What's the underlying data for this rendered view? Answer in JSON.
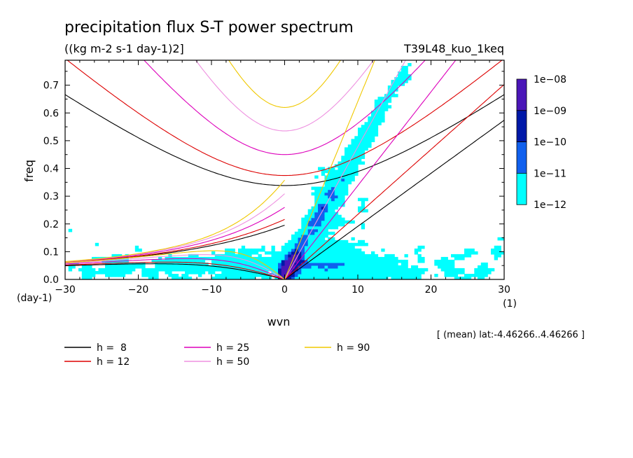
{
  "chart_data": {
    "type": "heatmap",
    "title": "precipitation flux S-T power spectrum",
    "subtitle": "((kg m-2 s-1 day-1)2]",
    "run_label": "T39L48_kuo_1keq",
    "xlabel": "wvn",
    "ylabel": "freq",
    "x_unit_label": "(1)",
    "y_unit_label": "(day-1)",
    "xlim": [
      -30,
      30
    ],
    "ylim": [
      0,
      0.79
    ],
    "xticks": [
      -30,
      -20,
      -10,
      0,
      10,
      20,
      30
    ],
    "yticks": [
      0.0,
      0.1,
      0.2,
      0.3,
      0.4,
      0.5,
      0.6,
      0.7
    ],
    "ytick_labels": [
      "0.0",
      "0.1",
      "0.2",
      "0.3",
      "0.4",
      "0.5",
      "0.6",
      "0.7"
    ],
    "mean_note": "[ (mean) lat:-4.46266..4.46266 ]",
    "colorbar": {
      "labels": [
        "1e-08",
        "1e-09",
        "1e-10",
        "1e-11",
        "1e-12"
      ],
      "colors": [
        "#4a16b8",
        "#0018a8",
        "#1060ee",
        "#00ffff"
      ]
    },
    "dispersion_curves": [
      {
        "label": "h =  8",
        "h": 8,
        "color": "#000000"
      },
      {
        "label": "h = 12",
        "h": 12,
        "color": "#dd0000"
      },
      {
        "label": "h = 25",
        "h": 25,
        "color": "#dd00bb"
      },
      {
        "label": "h = 50",
        "h": 50,
        "color": "#ee90e0"
      },
      {
        "label": "h = 90",
        "h": 90,
        "color": "#f0c800"
      }
    ],
    "field_levels": {
      "level_1e-12": "#00ffff",
      "level_1e-11": "#1060ee",
      "level_1e-10": "#0018a8",
      "level_1e-09": "#4a16b8"
    }
  }
}
